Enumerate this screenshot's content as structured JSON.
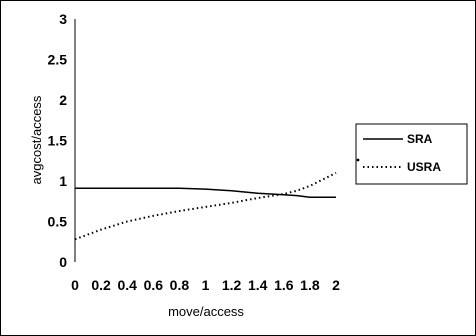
{
  "chart_data": {
    "type": "line",
    "xlabel": "move/access",
    "ylabel": "avgcost/access",
    "xlim": [
      0,
      2
    ],
    "ylim": [
      0,
      3
    ],
    "xticks": [
      "0",
      "0.2",
      "0.4",
      "0.6",
      "0.8",
      "1",
      "1.2",
      "1.4",
      "1.6",
      "1.8",
      "2"
    ],
    "yticks": [
      "0",
      "0.5",
      "1",
      "1.5",
      "2",
      "2.5",
      "3"
    ],
    "grid": false,
    "legend_position": "right",
    "series": [
      {
        "name": "SRA",
        "style": "solid",
        "color": "#000000",
        "x": [
          0,
          0.2,
          0.4,
          0.6,
          0.8,
          1.0,
          1.2,
          1.4,
          1.6,
          1.7,
          1.8,
          2.0
        ],
        "y": [
          0.91,
          0.91,
          0.91,
          0.91,
          0.91,
          0.9,
          0.88,
          0.85,
          0.83,
          0.82,
          0.8,
          0.8
        ]
      },
      {
        "name": "USRA",
        "style": "dotted",
        "color": "#000000",
        "x": [
          0,
          0.2,
          0.4,
          0.6,
          0.8,
          1.0,
          1.2,
          1.4,
          1.6,
          1.7,
          1.8,
          1.9,
          2.0
        ],
        "y": [
          0.28,
          0.4,
          0.5,
          0.57,
          0.63,
          0.68,
          0.73,
          0.79,
          0.84,
          0.88,
          0.94,
          1.02,
          1.1
        ]
      }
    ]
  }
}
